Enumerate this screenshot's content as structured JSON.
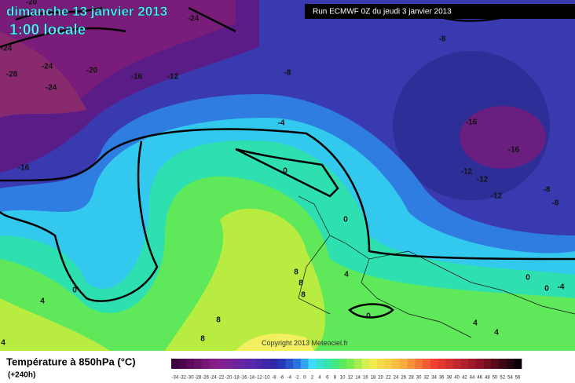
{
  "header": {
    "title": "dimanche 13 janvier 2013",
    "subtitle": "1:00 locale",
    "run": "Run ECMWF 0Z du jeudi 3 janvier 2013",
    "copyright": "Copyright 2013 Meteociel.fr"
  },
  "legend": {
    "title": "Température à 850hPa (°C)",
    "lead": "(+240h)",
    "ticks": [
      -34,
      -32,
      -30,
      -28,
      -26,
      -24,
      -22,
      -20,
      -18,
      -16,
      -14,
      -12,
      -10,
      -8,
      -6,
      -4,
      -2,
      0,
      2,
      4,
      6,
      8,
      10,
      12,
      14,
      16,
      18,
      20,
      22,
      24,
      26,
      28,
      30,
      32,
      34,
      36,
      38,
      40,
      42,
      44,
      46,
      48,
      50,
      52,
      54,
      56
    ]
  },
  "map": {
    "labels": [
      -20,
      -24,
      -24,
      -28,
      -24,
      -24,
      -20,
      -16,
      -12,
      -8,
      -8,
      -16,
      -16,
      -12,
      -12,
      -12,
      -8,
      -8,
      -4,
      -16,
      0,
      0,
      0,
      4,
      8,
      8,
      8,
      4,
      0,
      4,
      4,
      0,
      0,
      -4,
      8,
      8,
      4
    ]
  }
}
